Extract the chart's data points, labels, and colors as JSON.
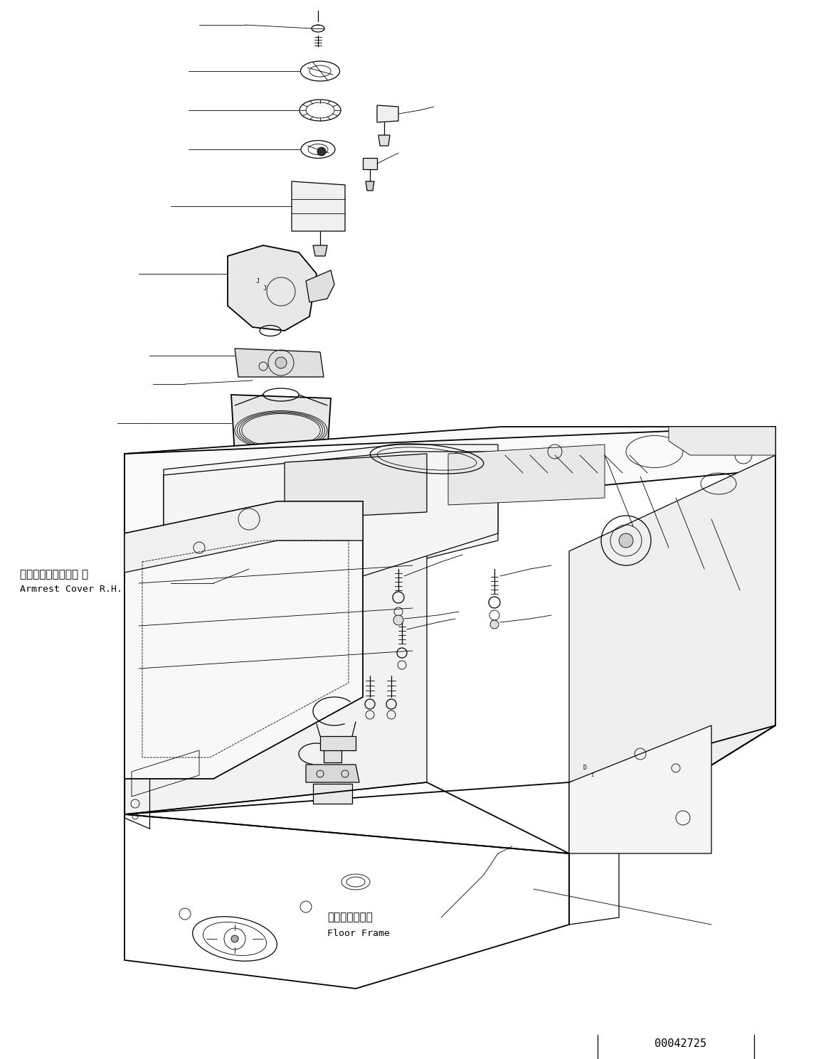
{
  "bg_color": "#ffffff",
  "line_color": "#000000",
  "text_color": "#000000",
  "part_number": "00042725",
  "label_armrest_jp": "アームレストカバー 右",
  "label_armrest_en": "Armrest Cover R.H.",
  "label_floor_jp": "フロアフレーム",
  "label_floor_en": "Floor Frame",
  "fig_width": 11.47,
  "fig_height": 14.89,
  "dpi": 100
}
